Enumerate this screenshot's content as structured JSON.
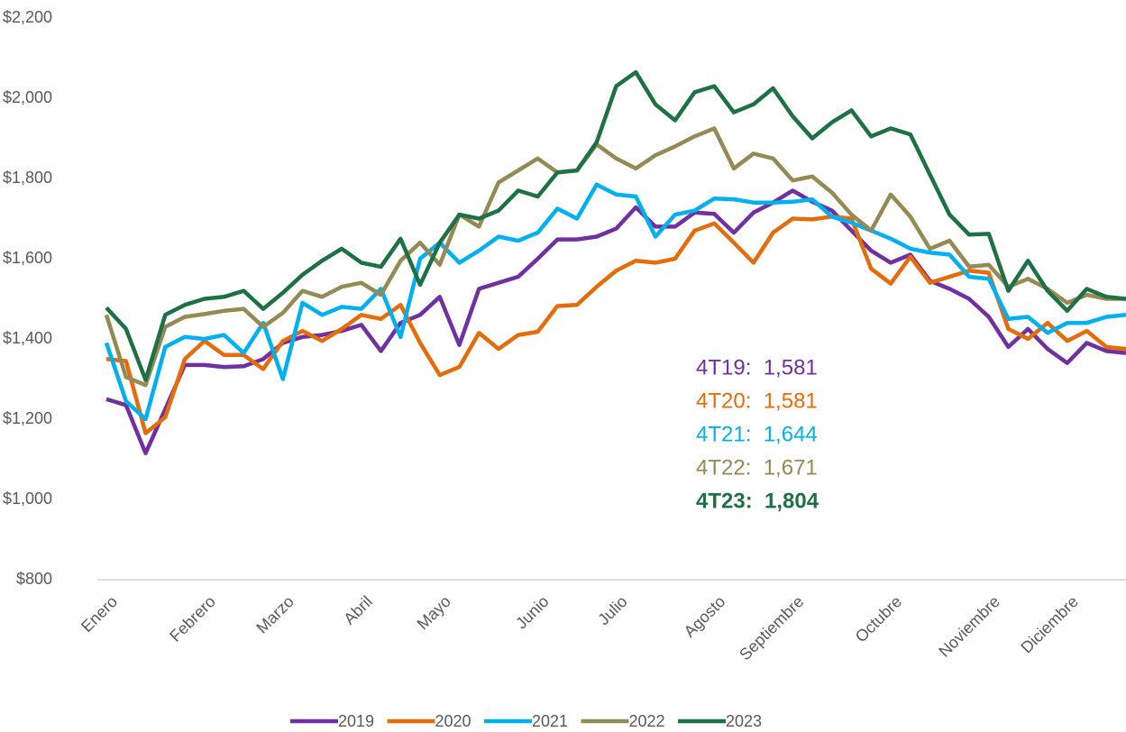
{
  "chart_data": {
    "type": "line",
    "categories": [
      "Enero",
      null,
      null,
      null,
      null,
      "Febrero",
      null,
      null,
      null,
      "Marzo",
      null,
      null,
      null,
      "Abril",
      null,
      null,
      null,
      "Mayo",
      null,
      null,
      null,
      null,
      "Junio",
      null,
      null,
      null,
      "Julio",
      null,
      null,
      null,
      null,
      "Agosto",
      null,
      null,
      null,
      "Septiembre",
      null,
      null,
      null,
      null,
      "Octubre",
      null,
      null,
      null,
      null,
      "Noviembre",
      null,
      null,
      null,
      "Diciembre",
      null,
      null,
      null
    ],
    "ylim": [
      800,
      2200
    ],
    "yticks": [
      {
        "value": 800,
        "label": "$800"
      },
      {
        "value": 1000,
        "label": "$1,000"
      },
      {
        "value": 1200,
        "label": "$1,200"
      },
      {
        "value": 1400,
        "label": "$1,400"
      },
      {
        "value": 1600,
        "label": "$1,600"
      },
      {
        "value": 1800,
        "label": "$1,800"
      },
      {
        "value": 2000,
        "label": "$2,000"
      },
      {
        "value": 2200,
        "label": "$2,200"
      }
    ],
    "grid": false,
    "series": [
      {
        "name": "2019",
        "color": "#7030a0",
        "values": [
          1250,
          1235,
          1115,
          1225,
          1335,
          1335,
          1330,
          1332,
          1350,
          1390,
          1405,
          1410,
          1420,
          1435,
          1370,
          1440,
          1460,
          1505,
          1385,
          1525,
          1540,
          1555,
          1600,
          1648,
          1648,
          1655,
          1675,
          1728,
          1680,
          1680,
          1715,
          1712,
          1665,
          1715,
          1740,
          1770,
          1742,
          1720,
          1670,
          1620,
          1590,
          1610,
          1545,
          1525,
          1500,
          1455,
          1380,
          1425,
          1375,
          1340,
          1390,
          1370,
          1365
        ]
      },
      {
        "name": "2020",
        "color": "#e46c0a",
        "values": [
          1350,
          1345,
          1165,
          1205,
          1350,
          1395,
          1360,
          1360,
          1325,
          1395,
          1420,
          1395,
          1425,
          1460,
          1450,
          1485,
          1390,
          1310,
          1330,
          1415,
          1375,
          1410,
          1418,
          1482,
          1485,
          1530,
          1570,
          1595,
          1590,
          1600,
          1670,
          1688,
          1640,
          1590,
          1665,
          1700,
          1698,
          1705,
          1700,
          1575,
          1538,
          1605,
          1540,
          1555,
          1570,
          1565,
          1425,
          1400,
          1440,
          1395,
          1420,
          1380,
          1375
        ]
      },
      {
        "name": "2021",
        "color": "#00b0f0",
        "values": [
          1390,
          1245,
          1200,
          1380,
          1405,
          1400,
          1410,
          1365,
          1440,
          1300,
          1490,
          1460,
          1480,
          1475,
          1525,
          1405,
          1600,
          1640,
          1590,
          1620,
          1655,
          1645,
          1665,
          1725,
          1700,
          1785,
          1760,
          1755,
          1655,
          1710,
          1720,
          1750,
          1748,
          1740,
          1740,
          1742,
          1748,
          1705,
          1690,
          1670,
          1650,
          1625,
          1615,
          1610,
          1555,
          1550,
          1450,
          1455,
          1415,
          1440,
          1440,
          1455,
          1460
        ]
      },
      {
        "name": "2022",
        "color": "#948a54",
        "values": [
          1460,
          1305,
          1285,
          1430,
          1455,
          1462,
          1470,
          1475,
          1430,
          1465,
          1520,
          1505,
          1530,
          1540,
          1510,
          1595,
          1640,
          1585,
          1710,
          1680,
          1790,
          1820,
          1850,
          1815,
          1820,
          1885,
          1850,
          1825,
          1858,
          1880,
          1905,
          1925,
          1825,
          1862,
          1850,
          1795,
          1805,
          1765,
          1710,
          1670,
          1760,
          1705,
          1625,
          1645,
          1580,
          1585,
          1530,
          1550,
          1525,
          1490,
          1510,
          1500,
          1500
        ]
      },
      {
        "name": "2023",
        "color": "#1e7145",
        "values": [
          1478,
          1425,
          1298,
          1460,
          1485,
          1500,
          1505,
          1520,
          1475,
          1515,
          1560,
          1595,
          1625,
          1590,
          1580,
          1650,
          1535,
          1640,
          1710,
          1700,
          1720,
          1770,
          1755,
          1815,
          1820,
          1890,
          2030,
          2065,
          1985,
          1945,
          2015,
          2030,
          1965,
          1985,
          2025,
          1955,
          1900,
          1940,
          1970,
          1905,
          1925,
          1910,
          1810,
          1710,
          1660,
          1662,
          1520,
          1595,
          1520,
          1470,
          1525,
          1505,
          1500
        ]
      }
    ],
    "annotations": [
      {
        "text": "4T19:  1,581",
        "color": "#7030a0",
        "bold": false
      },
      {
        "text": "4T20:  1,581",
        "color": "#e46c0a",
        "bold": false
      },
      {
        "text": "4T21:  1,644",
        "color": "#00b0f0",
        "bold": false
      },
      {
        "text": "4T22:  1,671",
        "color": "#948a54",
        "bold": false
      },
      {
        "text": "4T23:  1,804",
        "color": "#1e7145",
        "bold": true
      }
    ]
  }
}
